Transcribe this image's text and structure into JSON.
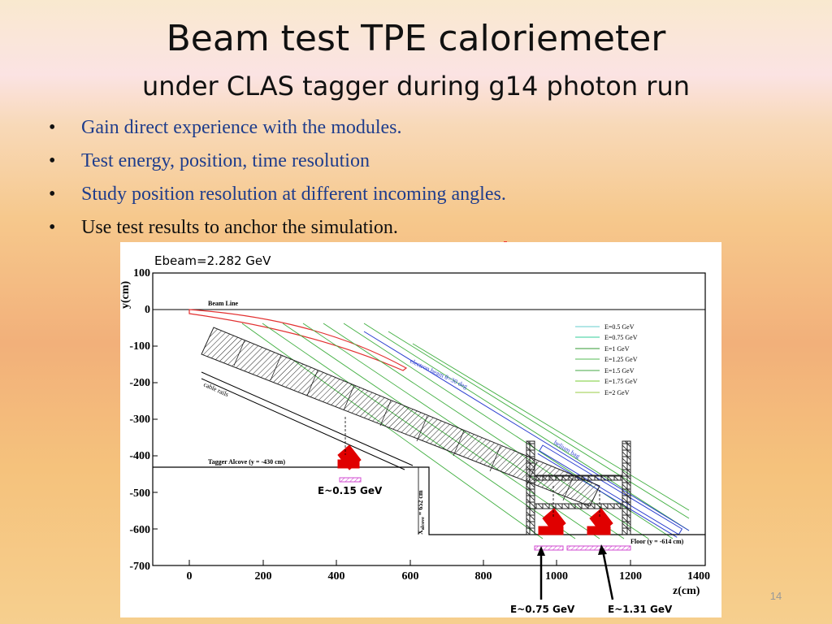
{
  "slide": {
    "title": "Beam test TPE caloriemeter",
    "subtitle": "under CLAS tagger during g14 photon run",
    "page_number": "14",
    "bullets": [
      {
        "text": "Gain direct experience with the modules.",
        "color": "#1f3d8c"
      },
      {
        "text": "Test energy, position, time resolution",
        "color": "#1f3d8c"
      },
      {
        "text": "Study position resolution at different incoming angles.",
        "color": "#1f3d8c"
      },
      {
        "text": "Use test results to anchor the simulation.",
        "color": "#111111"
      }
    ],
    "bullet_glyph": "•"
  },
  "figure": {
    "header": "Ebeam=2.282 GeV",
    "ylabel": "y(cm)",
    "xlabel": "z(cm)",
    "y_ticks": [
      "100",
      "0",
      "-100",
      "-200",
      "-300",
      "-400",
      "-500",
      "-600",
      "-700"
    ],
    "x_ticks": [
      "0",
      "200",
      "400",
      "600",
      "800",
      "1000",
      "1200",
      "1400"
    ],
    "labels": {
      "beam_line": "Beam Line",
      "cable_rails": "cable rails",
      "tagger_alcove": "Tagger Alcove (y = -430 cm)",
      "electron_beam": "electron beam θ=30 deg",
      "helium_bag": "helium bag",
      "floor": "Floor (y = -614 cm)",
      "x_alcove": "X",
      "x_alcove_sub": "alcove",
      "x_alcove_val": "= 652 cm"
    },
    "legend": [
      "E=0.5 GeV",
      "E=0.75 GeV",
      "E=1 GeV",
      "E=1.25 GeV",
      "E=1.5 GeV",
      "E=1.75 GeV",
      "E=2 GeV"
    ],
    "callouts": [
      "E~0.15 GeV",
      "E~0.75 GeV",
      "E~1.31 GeV"
    ]
  },
  "colors": {
    "title": "#111111",
    "bullet_blue": "#1f3d8c",
    "beam_red": "#e23030",
    "electron_blue": "#2b3fd0",
    "tracks_green": "#3fae3f",
    "detector_red": "#e00000",
    "magenta": "#d04ad0"
  }
}
